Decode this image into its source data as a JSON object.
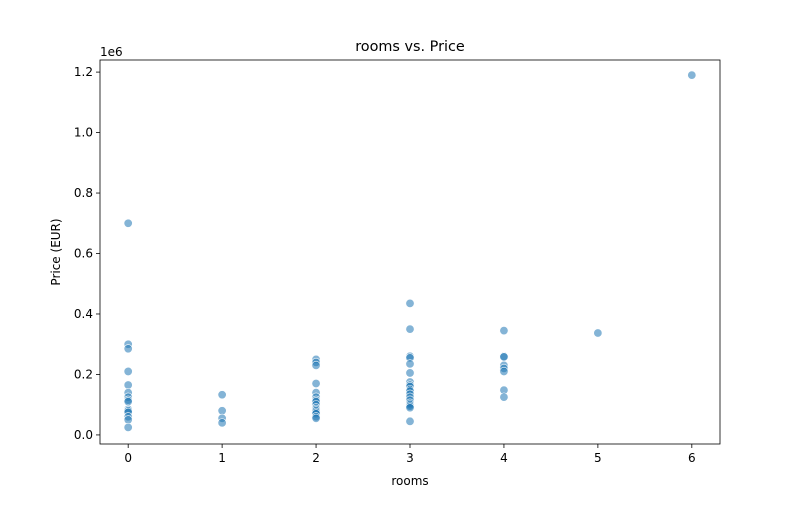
{
  "chart_data": {
    "type": "scatter",
    "title": "rooms vs. Price",
    "xlabel": "rooms",
    "ylabel": "Price (EUR)",
    "y_offset_label": "1e6",
    "xlim": [
      -0.3,
      6.3
    ],
    "ylim": [
      -0.03,
      1.24
    ],
    "xticks": [
      0,
      1,
      2,
      3,
      4,
      5,
      6
    ],
    "yticks": [
      0.0,
      0.2,
      0.4,
      0.6,
      0.8,
      1.0,
      1.2
    ],
    "ytick_labels": [
      "0.0",
      "0.2",
      "0.4",
      "0.6",
      "0.8",
      "1.0",
      "1.2"
    ],
    "grid": false,
    "point_color": "#1f77b4",
    "point_alpha": 0.55,
    "points": [
      [
        0,
        0.7
      ],
      [
        0,
        0.3
      ],
      [
        0,
        0.285
      ],
      [
        0,
        0.21
      ],
      [
        0,
        0.165
      ],
      [
        0,
        0.14
      ],
      [
        0,
        0.125
      ],
      [
        0,
        0.115
      ],
      [
        0,
        0.11
      ],
      [
        0,
        0.085
      ],
      [
        0,
        0.08
      ],
      [
        0,
        0.075
      ],
      [
        0,
        0.06
      ],
      [
        0,
        0.05
      ],
      [
        0,
        0.025
      ],
      [
        1,
        0.133
      ],
      [
        1,
        0.08
      ],
      [
        1,
        0.055
      ],
      [
        1,
        0.04
      ],
      [
        2,
        0.25
      ],
      [
        2,
        0.24
      ],
      [
        2,
        0.23
      ],
      [
        2,
        0.17
      ],
      [
        2,
        0.14
      ],
      [
        2,
        0.125
      ],
      [
        2,
        0.115
      ],
      [
        2,
        0.11
      ],
      [
        2,
        0.1
      ],
      [
        2,
        0.09
      ],
      [
        2,
        0.085
      ],
      [
        2,
        0.08
      ],
      [
        2,
        0.075
      ],
      [
        2,
        0.07
      ],
      [
        2,
        0.06
      ],
      [
        2,
        0.055
      ],
      [
        3,
        0.435
      ],
      [
        3,
        0.35
      ],
      [
        3,
        0.26
      ],
      [
        3,
        0.255
      ],
      [
        3,
        0.235
      ],
      [
        3,
        0.205
      ],
      [
        3,
        0.175
      ],
      [
        3,
        0.165
      ],
      [
        3,
        0.16
      ],
      [
        3,
        0.15
      ],
      [
        3,
        0.145
      ],
      [
        3,
        0.135
      ],
      [
        3,
        0.125
      ],
      [
        3,
        0.115
      ],
      [
        3,
        0.105
      ],
      [
        3,
        0.1
      ],
      [
        3,
        0.095
      ],
      [
        3,
        0.09
      ],
      [
        3,
        0.045
      ],
      [
        4,
        0.345
      ],
      [
        4,
        0.26
      ],
      [
        4,
        0.258
      ],
      [
        4,
        0.23
      ],
      [
        4,
        0.22
      ],
      [
        4,
        0.21
      ],
      [
        4,
        0.148
      ],
      [
        4,
        0.125
      ],
      [
        5,
        0.337
      ],
      [
        6,
        1.19
      ]
    ]
  }
}
